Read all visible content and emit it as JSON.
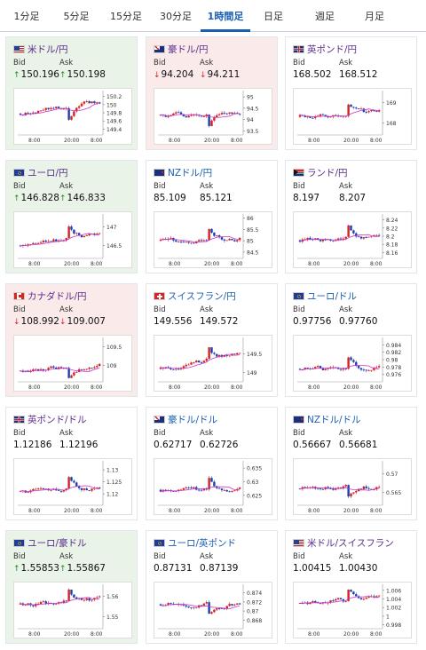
{
  "tabs": [
    {
      "label": "1分足",
      "active": false
    },
    {
      "label": "5分足",
      "active": false
    },
    {
      "label": "15分足",
      "active": false
    },
    {
      "label": "30分足",
      "active": false
    },
    {
      "label": "1時間足",
      "active": true
    },
    {
      "label": "日足",
      "active": false
    },
    {
      "label": "週足",
      "active": false
    },
    {
      "label": "月足",
      "active": false
    }
  ],
  "labels": {
    "bid": "Bid",
    "ask": "Ask"
  },
  "colors": {
    "up_bg": "#e9f3e7",
    "down_bg": "#fbeaea",
    "candle_up": "#d22222",
    "candle_down": "#1a3fb0",
    "ma": "#cc33cc",
    "accent": "#1a5fb4"
  },
  "chart_data": [
    {
      "type": "candlestick",
      "pair": "米ドル/円",
      "trend": "up",
      "bid": "150.196",
      "ask": "150.198",
      "flag": "us",
      "x_ticks": [
        "8:00",
        "20:00",
        "8:00"
      ],
      "y_ticks": [
        "150.2",
        "150",
        "149.8",
        "149.6",
        "149.4"
      ],
      "ylim": [
        149.3,
        150.3
      ],
      "start": 149.78,
      "end": 150.1
    },
    {
      "type": "candlestick",
      "pair": "豪ドル/円",
      "trend": "down",
      "bid": "94.204",
      "ask": "94.211",
      "flag": "au",
      "x_ticks": [
        "8:00",
        "20:00",
        "8:00"
      ],
      "y_ticks": [
        "95",
        "94.5",
        "94",
        "93.5"
      ],
      "ylim": [
        93.4,
        95.2
      ],
      "start": 94.2,
      "end": 94.2
    },
    {
      "type": "candlestick",
      "pair": "英ポンド/円",
      "trend": "flat",
      "bid": "168.502",
      "ask": "168.512",
      "flag": "uk",
      "x_ticks": [
        "8:00",
        "20:00",
        "8:00"
      ],
      "y_ticks": [
        "169",
        "168"
      ],
      "ylim": [
        167.5,
        169.5
      ],
      "start": 168.3,
      "end": 168.5
    },
    {
      "type": "candlestick",
      "pair": "ユーロ/円",
      "trend": "up",
      "bid": "146.828",
      "ask": "146.833",
      "flag": "eu",
      "x_ticks": [
        "8:00",
        "20:00",
        "8:00"
      ],
      "y_ticks": [
        "147",
        "146.5"
      ],
      "ylim": [
        146.2,
        147.3
      ],
      "start": 146.5,
      "end": 146.85
    },
    {
      "type": "candlestick",
      "pair": "NZドル/円",
      "trend": "flat",
      "bid": "85.109",
      "ask": "85.121",
      "flag": "nz",
      "x_ticks": [
        "8:00",
        "20:00",
        "8:00"
      ],
      "y_ticks": [
        "86",
        "85.5",
        "85",
        "84.5"
      ],
      "ylim": [
        84.3,
        86.1
      ],
      "start": 85.0,
      "end": 85.1
    },
    {
      "type": "candlestick",
      "pair": "ランド/円",
      "trend": "flat",
      "bid": "8.197",
      "ask": "8.207",
      "flag": "za",
      "x_ticks": [
        "8:00",
        "20:00",
        "8:00"
      ],
      "y_ticks": [
        "8.24",
        "8.22",
        "8.2",
        "8.18",
        "8.16"
      ],
      "ylim": [
        8.15,
        8.25
      ],
      "start": 8.19,
      "end": 8.2
    },
    {
      "type": "candlestick",
      "pair": "カナダドル/円",
      "trend": "down",
      "bid": "108.992",
      "ask": "109.007",
      "flag": "ca",
      "x_ticks": [
        "8:00",
        "20:00",
        "8:00"
      ],
      "y_ticks": [
        "109.5",
        "109"
      ],
      "ylim": [
        108.6,
        109.7
      ],
      "start": 108.85,
      "end": 109.0
    },
    {
      "type": "candlestick",
      "pair": "スイスフラン/円",
      "trend": "flat",
      "bid": "149.556",
      "ask": "149.572",
      "flag": "ch",
      "x_ticks": [
        "8:00",
        "20:00",
        "8:00"
      ],
      "y_ticks": [
        "149.5",
        "149"
      ],
      "ylim": [
        148.8,
        149.9
      ],
      "start": 149.1,
      "end": 149.55
    },
    {
      "type": "candlestick",
      "pair": "ユーロ/ドル",
      "trend": "flat",
      "bid": "0.97756",
      "ask": "0.97760",
      "flag": "eu",
      "x_ticks": [
        "8:00",
        "20:00",
        "8:00"
      ],
      "y_ticks": [
        "0.984",
        "0.982",
        "0.98",
        "0.978",
        "0.976"
      ],
      "ylim": [
        0.9745,
        0.9855
      ],
      "start": 0.9775,
      "end": 0.9776
    },
    {
      "type": "candlestick",
      "pair": "英ポンド/ドル",
      "trend": "flat",
      "bid": "1.12186",
      "ask": "1.12196",
      "flag": "uk",
      "x_ticks": [
        "8:00",
        "20:00",
        "8:00"
      ],
      "y_ticks": [
        "1.13",
        "1.125",
        "1.12"
      ],
      "ylim": [
        1.116,
        1.133
      ],
      "start": 1.121,
      "end": 1.1219
    },
    {
      "type": "candlestick",
      "pair": "豪ドル/ドル",
      "trend": "flat",
      "bid": "0.62717",
      "ask": "0.62726",
      "flag": "au",
      "x_ticks": [
        "8:00",
        "20:00",
        "8:00"
      ],
      "y_ticks": [
        "0.635",
        "0.63",
        "0.625"
      ],
      "ylim": [
        0.622,
        0.637
      ],
      "start": 0.627,
      "end": 0.6272
    },
    {
      "type": "candlestick",
      "pair": "NZドル/ドル",
      "trend": "flat",
      "bid": "0.56667",
      "ask": "0.56681",
      "flag": "nz",
      "x_ticks": [
        "8:00",
        "20:00",
        "8:00"
      ],
      "y_ticks": [
        "0.57",
        "0.565"
      ],
      "ylim": [
        0.562,
        0.573
      ],
      "start": 0.566,
      "end": 0.5667
    },
    {
      "type": "candlestick",
      "pair": "ユーロ/豪ドル",
      "trend": "up",
      "bid": "1.55853",
      "ask": "1.55867",
      "flag": "eu",
      "x_ticks": [
        "8:00",
        "20:00",
        "8:00"
      ],
      "y_ticks": [
        "1.56",
        "1.55"
      ],
      "ylim": [
        1.545,
        1.565
      ],
      "start": 1.556,
      "end": 1.5586
    },
    {
      "type": "candlestick",
      "pair": "ユーロ/英ポンド",
      "trend": "flat",
      "bid": "0.87131",
      "ask": "0.87139",
      "flag": "eu",
      "x_ticks": [
        "8:00",
        "20:00",
        "8:00"
      ],
      "y_ticks": [
        "0.874",
        "0.872",
        "0.87",
        "0.868"
      ],
      "ylim": [
        0.8665,
        0.8755
      ],
      "start": 0.8715,
      "end": 0.8713
    },
    {
      "type": "candlestick",
      "pair": "米ドル/スイスフラン",
      "trend": "flat",
      "bid": "1.00415",
      "ask": "1.00430",
      "flag": "us",
      "x_ticks": [
        "8:00",
        "20:00",
        "8:00"
      ],
      "y_ticks": [
        "1.006",
        "1.004",
        "1.002",
        "1",
        "0.998"
      ],
      "ylim": [
        0.9975,
        1.007
      ],
      "start": 1.003,
      "end": 1.0042
    }
  ]
}
